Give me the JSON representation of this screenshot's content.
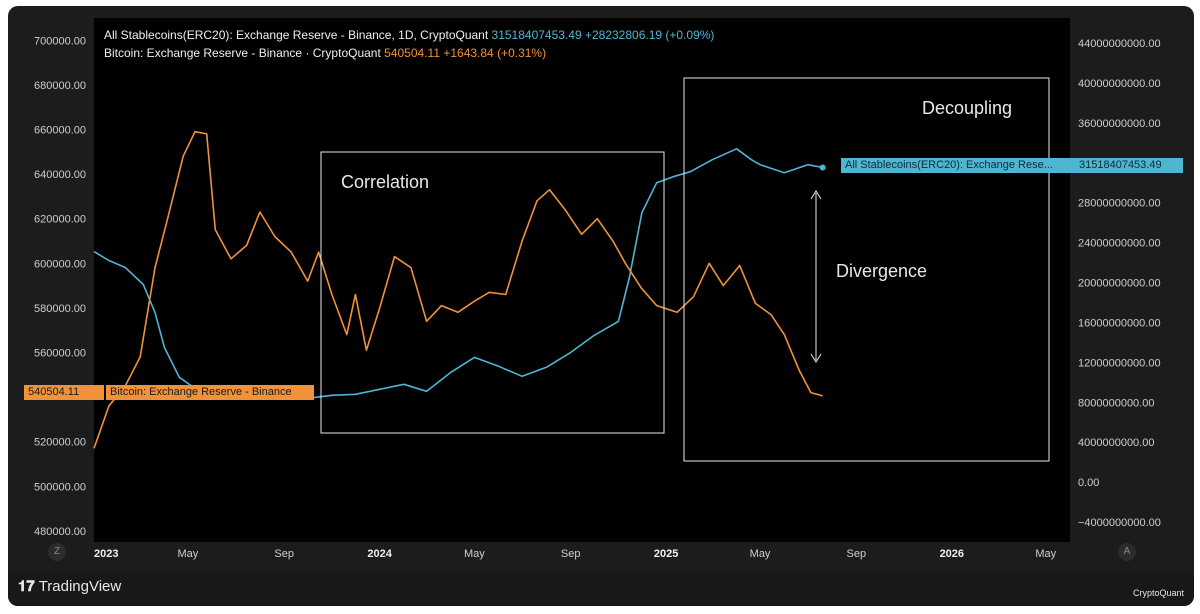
{
  "legend": {
    "stable_name": "All Stablecoins(ERC20): Exchange Reserve - Binance, 1D, CryptoQuant",
    "stable_value": "31518407453.49",
    "stable_change": "+28232806.19 (+0.09%)",
    "btc_name": "Bitcoin: Exchange Reserve - Binance · CryptoQuant",
    "btc_value": "540504.11",
    "btc_change": "+1643.84 (+0.31%)"
  },
  "tags": {
    "btc_value": "540504.11",
    "btc_name": "Bitcoin: Exchange Reserve - Binance",
    "stable_name": "All Stablecoins(ERC20): Exchange Rese...",
    "stable_value": "31518407453.49"
  },
  "annotations": {
    "correlation": "Correlation",
    "decoupling": "Decoupling",
    "divergence": "Divergence"
  },
  "branding": {
    "tradingview": "TradingView",
    "cryptoquant": "CryptoQuant",
    "btn_left": "Z",
    "btn_right": "A"
  },
  "colors": {
    "background": "#000000",
    "stable": "#4fb6d2",
    "btc": "#f0923a",
    "annotation": "#e8e8e8"
  },
  "chart_data": {
    "type": "line",
    "title": "",
    "left_axis": {
      "series": "Bitcoin: Exchange Reserve - Binance",
      "ylim": [
        475000,
        710000
      ],
      "ticks": [
        700000,
        680000,
        660000,
        640000,
        620000,
        600000,
        580000,
        560000,
        520000,
        500000,
        480000
      ],
      "tick_labels": [
        "700000.00",
        "680000.00",
        "660000.00",
        "640000.00",
        "620000.00",
        "600000.00",
        "580000.00",
        "560000.00",
        "520000.00",
        "500000.00",
        "480000.00"
      ]
    },
    "right_axis": {
      "series": "All Stablecoins(ERC20): Exchange Reserve - Binance",
      "ylim": [
        -6000000000,
        46500000000
      ],
      "ticks": [
        44000000000,
        40000000000,
        36000000000,
        32000000000,
        28000000000,
        24000000000,
        20000000000,
        16000000000,
        12000000000,
        8000000000,
        4000000000,
        0,
        -4000000000
      ],
      "tick_labels": [
        "44000000000.00",
        "40000000000.00",
        "36000000000.00",
        "32000000000.00",
        "28000000000.00",
        "24000000000.00",
        "20000000000.00",
        "16000000000.00",
        "12000000000.00",
        "8000000000.00",
        "4000000000.00",
        "0.00",
        "−4000000000.00"
      ]
    },
    "x_axis": {
      "range": [
        "2023-01-01",
        "2026-06-01"
      ],
      "ticks": [
        {
          "date": "2023-01-01",
          "label": "2023",
          "bold": true
        },
        {
          "date": "2023-05-01",
          "label": "May",
          "bold": false
        },
        {
          "date": "2023-09-01",
          "label": "Sep",
          "bold": false
        },
        {
          "date": "2024-01-01",
          "label": "2024",
          "bold": true
        },
        {
          "date": "2024-05-01",
          "label": "May",
          "bold": false
        },
        {
          "date": "2024-09-01",
          "label": "Sep",
          "bold": false
        },
        {
          "date": "2025-01-01",
          "label": "2025",
          "bold": true
        },
        {
          "date": "2025-05-01",
          "label": "May",
          "bold": false
        },
        {
          "date": "2025-09-01",
          "label": "Sep",
          "bold": false
        },
        {
          "date": "2026-01-01",
          "label": "2026",
          "bold": true
        },
        {
          "date": "2026-05-01",
          "label": "May",
          "bold": false
        }
      ]
    },
    "series": [
      {
        "name": "All Stablecoins(ERC20): Exchange Reserve - Binance",
        "axis": "right",
        "color": "#4fb6d2",
        "points": [
          [
            "2023-01-01",
            23100000000
          ],
          [
            "2023-01-20",
            22200000000
          ],
          [
            "2023-02-10",
            21500000000
          ],
          [
            "2023-03-05",
            19800000000
          ],
          [
            "2023-03-20",
            17000000000
          ],
          [
            "2023-04-01",
            13500000000
          ],
          [
            "2023-04-20",
            10500000000
          ],
          [
            "2023-05-10",
            9400000000
          ],
          [
            "2023-06-01",
            9000000000
          ],
          [
            "2023-07-01",
            9500000000
          ],
          [
            "2023-08-01",
            9300000000
          ],
          [
            "2023-09-01",
            9100000000
          ],
          [
            "2023-10-01",
            8400000000
          ],
          [
            "2023-11-01",
            8700000000
          ],
          [
            "2023-12-01",
            8800000000
          ],
          [
            "2024-01-01",
            9300000000
          ],
          [
            "2024-02-01",
            9800000000
          ],
          [
            "2024-03-01",
            9100000000
          ],
          [
            "2024-04-01",
            11000000000
          ],
          [
            "2024-05-01",
            12500000000
          ],
          [
            "2024-06-01",
            11600000000
          ],
          [
            "2024-07-01",
            10600000000
          ],
          [
            "2024-08-01",
            11500000000
          ],
          [
            "2024-09-01",
            13000000000
          ],
          [
            "2024-10-01",
            14700000000
          ],
          [
            "2024-11-01",
            16100000000
          ],
          [
            "2024-11-15",
            20500000000
          ],
          [
            "2024-12-01",
            27000000000
          ],
          [
            "2024-12-20",
            30000000000
          ],
          [
            "2025-01-10",
            30600000000
          ],
          [
            "2025-02-01",
            31100000000
          ],
          [
            "2025-03-01",
            32300000000
          ],
          [
            "2025-04-01",
            33400000000
          ],
          [
            "2025-04-20",
            32300000000
          ],
          [
            "2025-05-01",
            31800000000
          ],
          [
            "2025-06-01",
            31000000000
          ],
          [
            "2025-07-01",
            31800000000
          ],
          [
            "2025-07-20",
            31518407453
          ]
        ]
      },
      {
        "name": "Bitcoin: Exchange Reserve - Binance",
        "axis": "left",
        "color": "#f0923a",
        "points": [
          [
            "2023-01-01",
            517000
          ],
          [
            "2023-01-20",
            536000
          ],
          [
            "2023-02-10",
            545000
          ],
          [
            "2023-03-01",
            558000
          ],
          [
            "2023-03-20",
            598000
          ],
          [
            "2023-04-05",
            620000
          ],
          [
            "2023-04-25",
            648000
          ],
          [
            "2023-05-10",
            659000
          ],
          [
            "2023-05-25",
            658000
          ],
          [
            "2023-06-05",
            615000
          ],
          [
            "2023-06-25",
            602000
          ],
          [
            "2023-07-15",
            608000
          ],
          [
            "2023-08-01",
            623000
          ],
          [
            "2023-08-20",
            612000
          ],
          [
            "2023-09-10",
            605000
          ],
          [
            "2023-10-01",
            592000
          ],
          [
            "2023-10-15",
            605000
          ],
          [
            "2023-11-01",
            586000
          ],
          [
            "2023-11-20",
            568000
          ],
          [
            "2023-12-01",
            586000
          ],
          [
            "2023-12-15",
            561000
          ],
          [
            "2024-01-01",
            580000
          ],
          [
            "2024-01-20",
            603000
          ],
          [
            "2024-02-10",
            598000
          ],
          [
            "2024-03-01",
            574000
          ],
          [
            "2024-03-20",
            581000
          ],
          [
            "2024-04-10",
            578000
          ],
          [
            "2024-05-01",
            583000
          ],
          [
            "2024-05-20",
            587000
          ],
          [
            "2024-06-10",
            586000
          ],
          [
            "2024-07-01",
            610000
          ],
          [
            "2024-07-20",
            628000
          ],
          [
            "2024-08-05",
            633000
          ],
          [
            "2024-08-25",
            624000
          ],
          [
            "2024-09-15",
            613000
          ],
          [
            "2024-10-05",
            620000
          ],
          [
            "2024-10-25",
            610000
          ],
          [
            "2024-11-10",
            600000
          ],
          [
            "2024-11-30",
            589000
          ],
          [
            "2024-12-20",
            581000
          ],
          [
            "2025-01-15",
            578000
          ],
          [
            "2025-02-05",
            585000
          ],
          [
            "2025-02-25",
            600000
          ],
          [
            "2025-03-15",
            590000
          ],
          [
            "2025-04-05",
            599000
          ],
          [
            "2025-04-25",
            582000
          ],
          [
            "2025-05-15",
            577000
          ],
          [
            "2025-06-01",
            568000
          ],
          [
            "2025-06-20",
            552000
          ],
          [
            "2025-07-05",
            542000
          ],
          [
            "2025-07-20",
            540504
          ]
        ]
      }
    ]
  }
}
